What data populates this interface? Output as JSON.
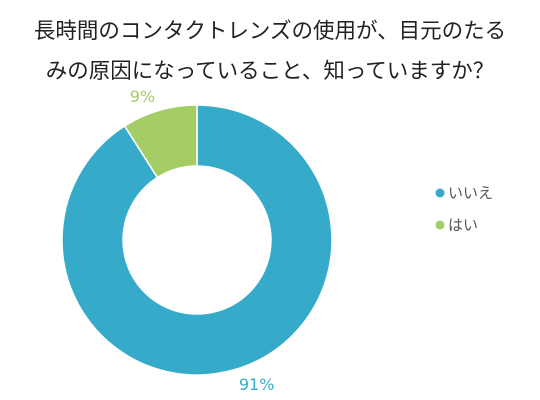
{
  "chart_data": {
    "type": "pie",
    "variant": "donut",
    "title_lines": [
      "長時間のコンタクトレンズの使用が、目元のたる",
      "みの原因になっていること、知っていますか？"
    ],
    "slices": [
      {
        "label": "いいえ",
        "value": 91,
        "value_label": "91%",
        "color": "#35abc9"
      },
      {
        "label": "はい",
        "value": 9,
        "value_label": "9%",
        "color": "#a5cd66"
      }
    ],
    "legend_position": "right",
    "start_angle_deg": 0,
    "direction": "clockwise"
  }
}
